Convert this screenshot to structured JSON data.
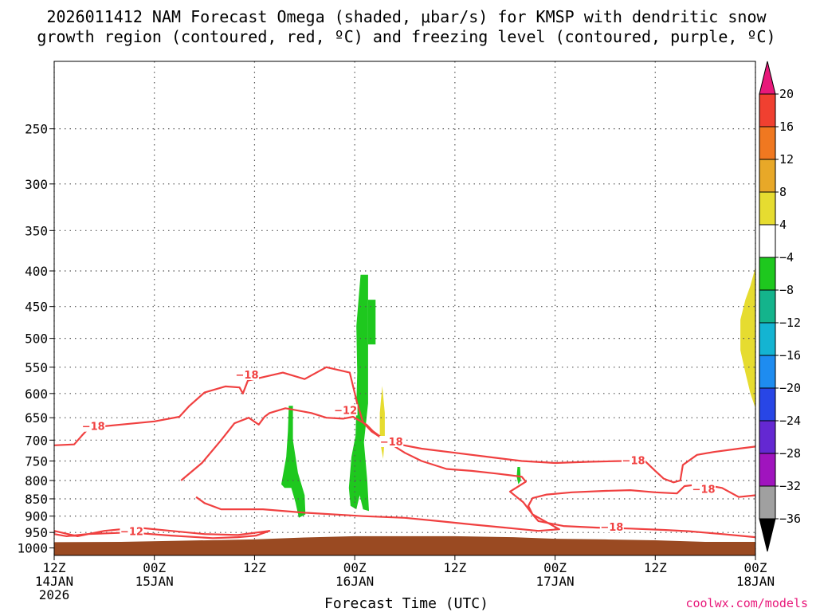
{
  "chart_data": {
    "type": "time-height",
    "title_lines": [
      "2026011412 NAM Forecast Omega (shaded, μbar/s) for KMSP with dendritic snow",
      "growth region (contoured, red, ºC) and freezing level (contoured, purple, ºC)"
    ],
    "xlabel": "Forecast Time (UTC)",
    "x_range_hours": [
      0,
      84
    ],
    "x_ticks": [
      {
        "hour": 0,
        "lines": [
          "12Z",
          "14JAN",
          "2026"
        ]
      },
      {
        "hour": 12,
        "lines": [
          "00Z",
          "15JAN"
        ]
      },
      {
        "hour": 24,
        "lines": [
          "12Z",
          ""
        ]
      },
      {
        "hour": 36,
        "lines": [
          "00Z",
          "16JAN"
        ]
      },
      {
        "hour": 48,
        "lines": [
          "12Z",
          ""
        ]
      },
      {
        "hour": 60,
        "lines": [
          "00Z",
          "17JAN"
        ]
      },
      {
        "hour": 72,
        "lines": [
          "12Z",
          ""
        ]
      },
      {
        "hour": 84,
        "lines": [
          "00Z",
          "18JAN"
        ]
      }
    ],
    "y_ticks_hpa": [
      250,
      300,
      350,
      400,
      450,
      500,
      550,
      600,
      650,
      700,
      750,
      800,
      850,
      900,
      950,
      1000
    ],
    "y_range_hpa": [
      200,
      1025
    ],
    "grid": "dotted",
    "colorbar": {
      "labels": [
        "20",
        "16",
        "12",
        "8",
        "4",
        "−4",
        "−8",
        "−12",
        "−16",
        "−20",
        "−24",
        "−28",
        "−32",
        "−36"
      ],
      "bands": [
        {
          "from": 20,
          "to": 99,
          "color": "#e8187a"
        },
        {
          "from": 16,
          "to": 20,
          "color": "#f04030"
        },
        {
          "from": 12,
          "to": 16,
          "color": "#f07820"
        },
        {
          "from": 8,
          "to": 12,
          "color": "#e8a828"
        },
        {
          "from": 4,
          "to": 8,
          "color": "#e6dc30"
        },
        {
          "from": -4,
          "to": 4,
          "color": "#ffffff"
        },
        {
          "from": -8,
          "to": -4,
          "color": "#1ec81e"
        },
        {
          "from": -12,
          "to": -8,
          "color": "#14b48c"
        },
        {
          "from": -16,
          "to": -12,
          "color": "#14b4d2"
        },
        {
          "from": -20,
          "to": -16,
          "color": "#1e8cf0"
        },
        {
          "from": -24,
          "to": -20,
          "color": "#2846e6"
        },
        {
          "from": -28,
          "to": -24,
          "color": "#6428d2"
        },
        {
          "from": -32,
          "to": -28,
          "color": "#a014be"
        },
        {
          "from": -36,
          "to": -32,
          "color": "#a0a0a0"
        },
        {
          "from": -99,
          "to": -36,
          "color": "#000000"
        }
      ]
    },
    "omega_shading": [
      {
        "name": "ascent-column-a",
        "value_range": "-8 to -4",
        "color": "#1ec81e",
        "points": [
          [
            36.7,
            405
          ],
          [
            37.6,
            405
          ],
          [
            37.6,
            620
          ],
          [
            37.1,
            705
          ],
          [
            37.5,
            800
          ],
          [
            37.7,
            885
          ],
          [
            37.0,
            880
          ],
          [
            36.6,
            840
          ],
          [
            36.2,
            880
          ],
          [
            35.5,
            870
          ],
          [
            35.3,
            820
          ],
          [
            35.6,
            740
          ],
          [
            36.1,
            690
          ],
          [
            36.3,
            560
          ],
          [
            36.2,
            480
          ]
        ]
      },
      {
        "name": "ascent-column-a-lobe",
        "value_range": "-8 to -4",
        "color": "#1ec81e",
        "points": [
          [
            37.6,
            440
          ],
          [
            38.5,
            440
          ],
          [
            38.5,
            510
          ],
          [
            37.6,
            510
          ]
        ]
      },
      {
        "name": "ascent-column-b",
        "value_range": "-8 to -4",
        "color": "#1ec81e",
        "points": [
          [
            28.1,
            625
          ],
          [
            28.6,
            625
          ],
          [
            28.6,
            700
          ],
          [
            29.2,
            780
          ],
          [
            30.0,
            840
          ],
          [
            30.1,
            895
          ],
          [
            29.3,
            905
          ],
          [
            28.9,
            860
          ],
          [
            28.4,
            820
          ],
          [
            27.6,
            820
          ],
          [
            27.2,
            810
          ],
          [
            27.8,
            740
          ],
          [
            28.0,
            680
          ]
        ]
      },
      {
        "name": "ascent-small-blob",
        "value_range": "-8 to -4",
        "color": "#1ec81e",
        "points": [
          [
            55.5,
            765
          ],
          [
            55.8,
            765
          ],
          [
            55.9,
            800
          ],
          [
            55.6,
            810
          ],
          [
            55.4,
            790
          ]
        ]
      },
      {
        "name": "descent-streak",
        "value_range": "4 to 8",
        "color": "#e6dc30",
        "points": [
          [
            39.3,
            585
          ],
          [
            39.6,
            640
          ],
          [
            39.6,
            695
          ],
          [
            39.4,
            745
          ],
          [
            39.0,
            700
          ],
          [
            39.0,
            640
          ]
        ]
      },
      {
        "name": "descent-right-edge",
        "value_range": "4 to 8",
        "color": "#e6dc30",
        "points": [
          [
            84,
            395
          ],
          [
            84,
            630
          ],
          [
            83.4,
            600
          ],
          [
            82.8,
            560
          ],
          [
            82.2,
            520
          ],
          [
            82.2,
            470
          ],
          [
            82.8,
            440
          ],
          [
            83.4,
            420
          ]
        ]
      }
    ],
    "dgz_contours": [
      {
        "level": "-18",
        "points": [
          [
            0,
            712
          ],
          [
            2.4,
            710
          ],
          [
            3.3,
            690
          ],
          [
            4.2,
            672
          ],
          [
            8,
            665
          ],
          [
            12,
            658
          ],
          [
            15,
            648
          ],
          [
            16.2,
            625
          ],
          [
            18,
            598
          ],
          [
            20.5,
            586
          ],
          [
            22.2,
            588
          ],
          [
            22.6,
            600
          ],
          [
            23.2,
            575
          ],
          [
            27.4,
            560
          ],
          [
            30,
            572
          ],
          [
            32.6,
            550
          ],
          [
            35.4,
            560
          ],
          [
            36.3,
            620
          ],
          [
            37,
            660
          ],
          [
            38,
            680
          ],
          [
            40,
            705
          ],
          [
            44,
            720
          ],
          [
            48,
            730
          ],
          [
            52,
            740
          ],
          [
            56,
            750
          ],
          [
            60,
            755
          ],
          [
            64,
            752
          ],
          [
            68,
            750
          ],
          [
            70.5,
            745
          ],
          [
            72,
            775
          ],
          [
            73,
            795
          ],
          [
            74.2,
            805
          ],
          [
            75,
            800
          ],
          [
            75.3,
            760
          ],
          [
            77,
            735
          ],
          [
            79,
            728
          ],
          [
            82,
            720
          ],
          [
            84,
            715
          ]
        ],
        "label_at": [
          [
            4.7,
            670
          ],
          [
            23.1,
            565
          ],
          [
            40.4,
            705
          ],
          [
            69.4,
            750
          ],
          [
            77.8,
            825
          ]
        ]
      },
      {
        "level": "-12",
        "points": [
          [
            0,
            945
          ],
          [
            2.8,
            962
          ],
          [
            6,
            945
          ],
          [
            10,
            935
          ],
          [
            14,
            945
          ],
          [
            18,
            955
          ],
          [
            22,
            958
          ],
          [
            25.8,
            945
          ],
          [
            24.2,
            960
          ],
          [
            22,
            965
          ],
          [
            19,
            968
          ],
          [
            14,
            960
          ],
          [
            9,
            950
          ],
          [
            4,
            955
          ],
          [
            1.5,
            962
          ],
          [
            0,
            955
          ]
        ],
        "label_at": [
          [
            9.3,
            948
          ]
        ]
      },
      {
        "level": "-12",
        "points": [
          [
            15.2,
            800
          ],
          [
            17.7,
            755
          ],
          [
            20,
            700
          ],
          [
            21.6,
            662
          ],
          [
            23.3,
            650
          ],
          [
            24.5,
            665
          ],
          [
            25.2,
            648
          ],
          [
            25.8,
            640
          ],
          [
            27.7,
            630
          ],
          [
            30.8,
            640
          ],
          [
            32.6,
            650
          ],
          [
            34.6,
            652
          ],
          [
            35.8,
            648
          ],
          [
            37.4,
            665
          ],
          [
            38.2,
            680
          ],
          [
            40,
            705
          ],
          [
            42,
            730
          ],
          [
            44,
            750
          ],
          [
            47,
            770
          ],
          [
            50,
            775
          ],
          [
            53,
            782
          ],
          [
            56,
            790
          ],
          [
            56.5,
            803
          ],
          [
            55.8,
            813
          ],
          [
            54.6,
            830
          ],
          [
            55.4,
            845
          ],
          [
            56.2,
            860
          ],
          [
            57.3,
            895
          ],
          [
            60.5,
            940
          ],
          [
            58,
            945
          ],
          [
            54,
            935
          ],
          [
            50,
            925
          ],
          [
            46,
            915
          ],
          [
            42,
            905
          ],
          [
            37,
            900
          ],
          [
            30,
            890
          ],
          [
            25,
            880
          ],
          [
            20,
            880
          ],
          [
            18,
            862
          ],
          [
            17,
            845
          ]
        ],
        "label_at": [
          [
            34.9,
            635
          ]
        ]
      },
      {
        "level": "-18",
        "points": [
          [
            57.3,
            895
          ],
          [
            56.8,
            870
          ],
          [
            57.3,
            848
          ],
          [
            59,
            838
          ],
          [
            62,
            832
          ],
          [
            66,
            828
          ],
          [
            69,
            826
          ],
          [
            72,
            832
          ],
          [
            74.6,
            835
          ],
          [
            75.5,
            815
          ],
          [
            77.5,
            810
          ],
          [
            80,
            820
          ],
          [
            82,
            845
          ],
          [
            84,
            840
          ]
        ],
        "label_at": []
      },
      {
        "level": "-18",
        "points": [
          [
            57.3,
            895
          ],
          [
            58,
            915
          ],
          [
            61,
            930
          ],
          [
            65,
            935
          ],
          [
            69,
            938
          ],
          [
            73,
            942
          ],
          [
            76,
            946
          ],
          [
            80,
            955
          ],
          [
            84,
            965
          ]
        ],
        "label_at": [
          [
            66.8,
            935
          ]
        ]
      }
    ],
    "terrain": {
      "color": "#9a4a22",
      "top_pressure_points": [
        [
          0,
          981
        ],
        [
          8,
          980
        ],
        [
          16,
          976
        ],
        [
          24,
          972
        ],
        [
          30,
          966
        ],
        [
          36,
          962
        ],
        [
          42,
          962
        ],
        [
          48,
          962
        ],
        [
          55,
          965
        ],
        [
          60,
          970
        ],
        [
          66,
          972
        ],
        [
          72,
          975
        ],
        [
          78,
          980
        ],
        [
          84,
          980
        ]
      ]
    },
    "contour_color": "#f04040",
    "credit": "coolwx.com/models"
  }
}
